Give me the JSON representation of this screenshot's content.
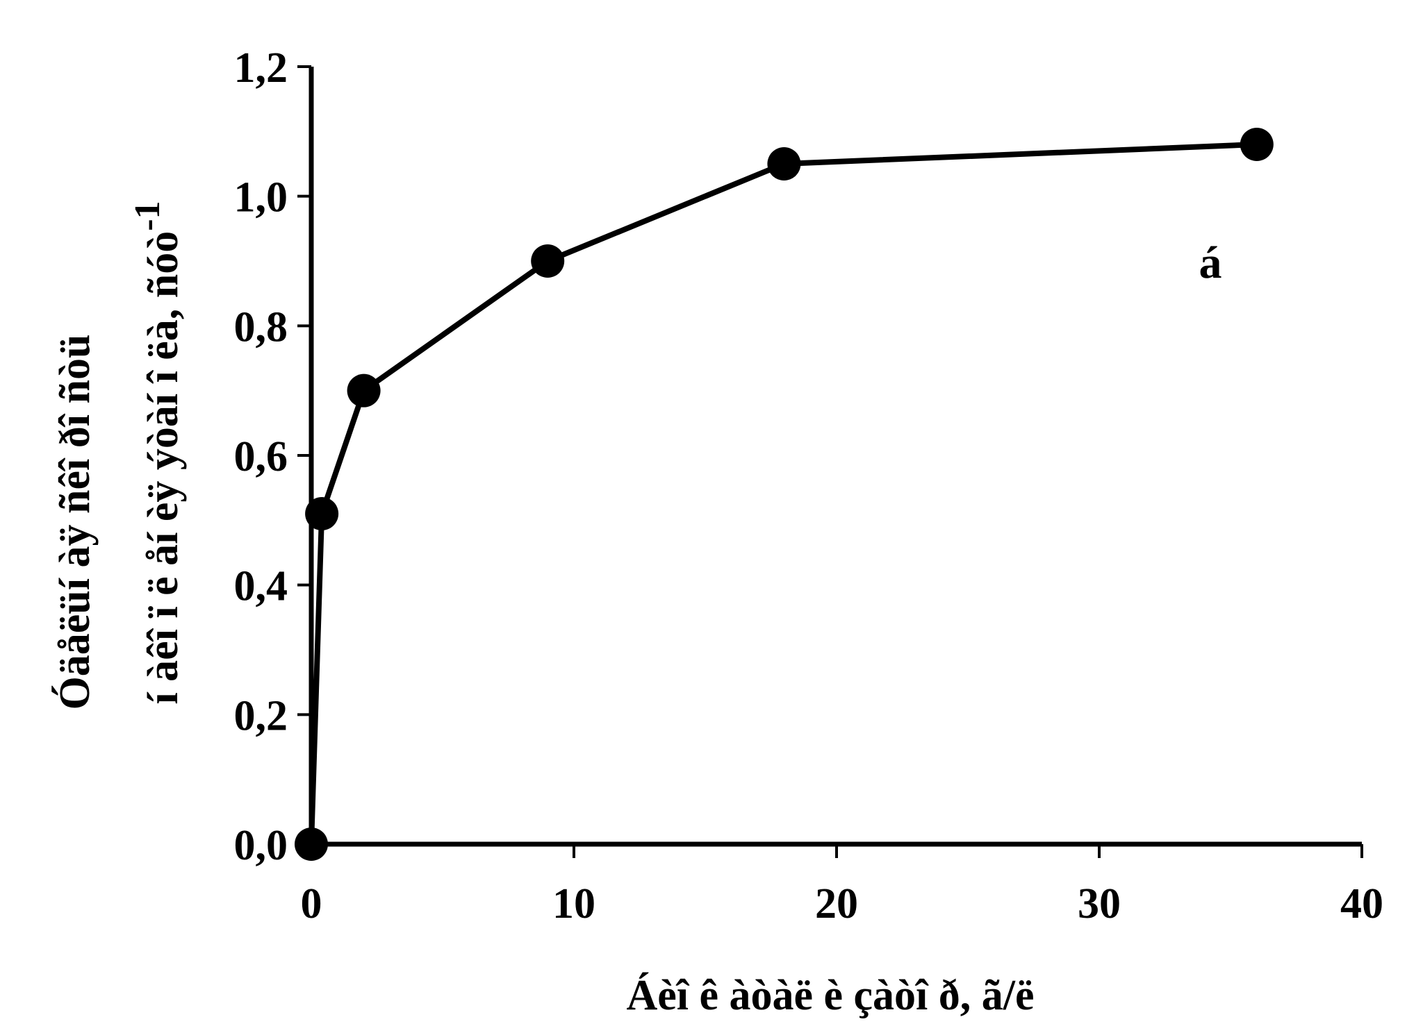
{
  "chart_data": {
    "type": "line",
    "title": "",
    "xlabel": "Áèî ê àòàë è çàòî ð, ã/ë",
    "ylabel_line1": "Óäåëüí àÿ ñêî ðî ñòü",
    "ylabel_line2": "í àêî ï ë åí èÿ ýòàí î ëà, ñóò",
    "ylabel_superscript": "-1",
    "annotation": "á",
    "xlim": [
      0,
      40
    ],
    "ylim": [
      0,
      1.2
    ],
    "x_ticks": [
      0,
      10,
      20,
      30,
      40
    ],
    "x_tick_labels": [
      "0",
      "10",
      "20",
      "30",
      "40"
    ],
    "y_ticks": [
      0,
      0.2,
      0.4,
      0.6,
      0.8,
      1.0,
      1.2
    ],
    "y_tick_labels": [
      "0,0",
      "0,2",
      "0,4",
      "0,6",
      "0,8",
      "1,0",
      "1,2"
    ],
    "grid": false,
    "legend": "none",
    "series": [
      {
        "color": "#000000",
        "marker": "circle",
        "points": [
          {
            "x": 0,
            "y": 0.0
          },
          {
            "x": 0.4,
            "y": 0.51
          },
          {
            "x": 2,
            "y": 0.7
          },
          {
            "x": 9,
            "y": 0.9
          },
          {
            "x": 18,
            "y": 1.05
          },
          {
            "x": 36,
            "y": 1.08
          }
        ]
      }
    ]
  }
}
